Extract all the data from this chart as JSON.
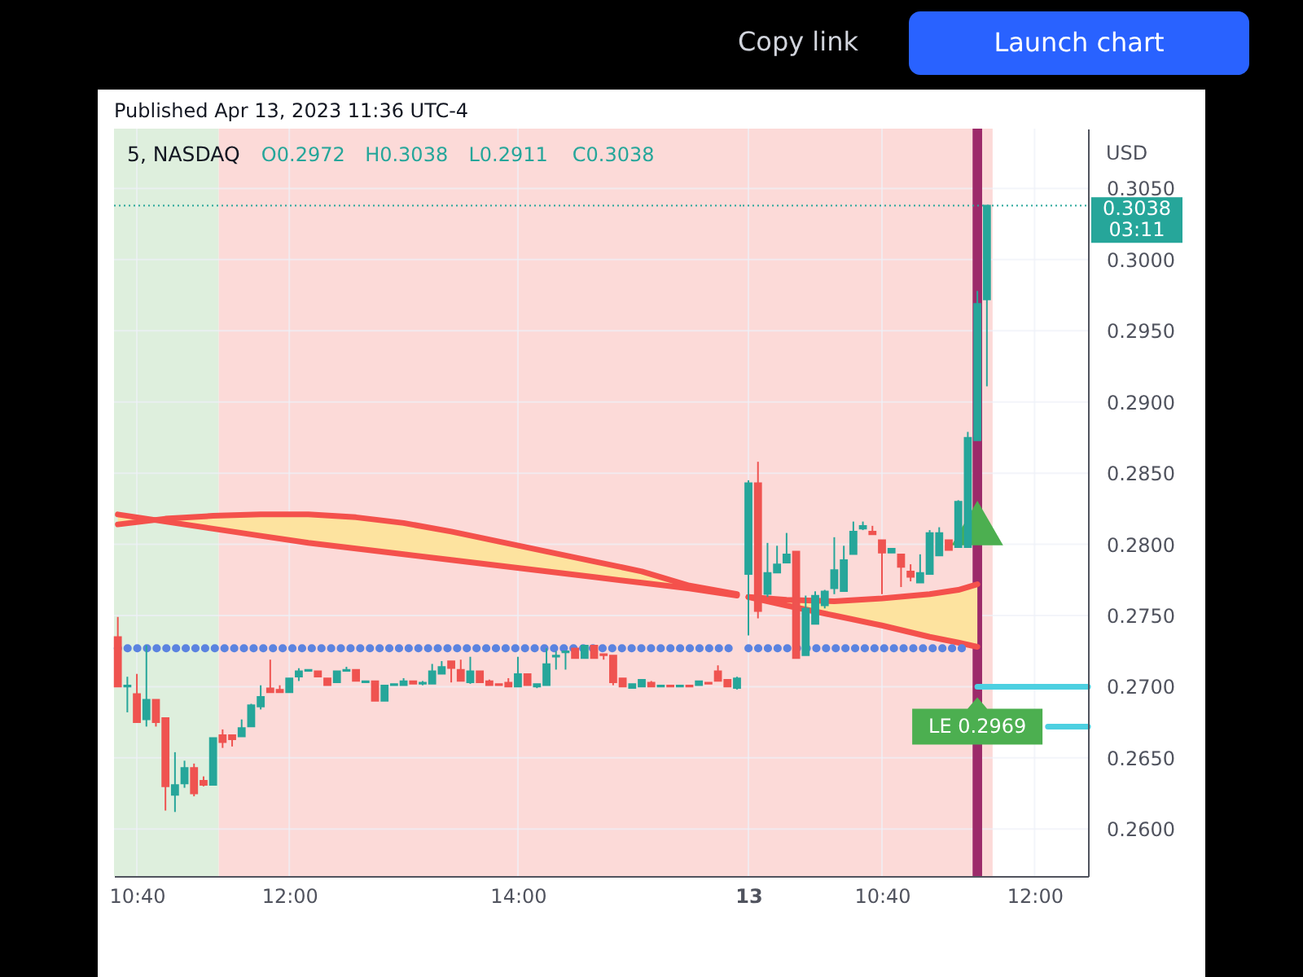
{
  "chart_data": [
    {
      "type": "candlestick",
      "title": "5, NASDAQ",
      "subtitle": "Published Apr 13, 2023 11:36 UTC-4",
      "x": [
        "2023-04-12T10:30",
        "2023-04-12T10:35",
        "2023-04-12T10:40",
        "2023-04-12T10:45",
        "2023-04-12T10:50",
        "2023-04-12T10:55",
        "2023-04-12T11:00",
        "2023-04-12T11:05",
        "2023-04-12T11:10",
        "2023-04-12T11:15",
        "2023-04-12T11:20",
        "2023-04-12T11:25",
        "2023-04-12T11:30",
        "2023-04-12T11:35",
        "2023-04-12T11:40",
        "2023-04-12T11:45",
        "2023-04-12T11:50",
        "2023-04-12T11:55",
        "2023-04-12T12:00",
        "2023-04-12T12:05",
        "2023-04-12T12:10",
        "2023-04-12T12:15",
        "2023-04-12T12:20",
        "2023-04-12T12:25",
        "2023-04-12T12:30",
        "2023-04-12T12:35",
        "2023-04-12T12:40",
        "2023-04-12T12:45",
        "2023-04-12T12:50",
        "2023-04-12T12:55",
        "2023-04-12T13:00",
        "2023-04-12T13:05",
        "2023-04-12T13:10",
        "2023-04-12T13:15",
        "2023-04-12T13:20",
        "2023-04-12T13:25",
        "2023-04-12T13:30",
        "2023-04-12T13:35",
        "2023-04-12T13:40",
        "2023-04-12T13:45",
        "2023-04-12T13:50",
        "2023-04-12T13:55",
        "2023-04-12T14:00",
        "2023-04-12T14:05",
        "2023-04-12T14:10",
        "2023-04-12T14:15",
        "2023-04-12T14:20",
        "2023-04-12T14:25",
        "2023-04-12T14:30",
        "2023-04-12T14:35",
        "2023-04-12T14:40",
        "2023-04-12T14:45",
        "2023-04-12T14:50",
        "2023-04-12T14:55",
        "2023-04-12T15:00",
        "2023-04-12T15:05",
        "2023-04-12T15:10",
        "2023-04-12T15:15",
        "2023-04-12T15:20",
        "2023-04-12T15:25",
        "2023-04-12T15:30",
        "2023-04-12T15:35",
        "2023-04-12T15:40",
        "2023-04-12T15:45",
        "2023-04-12T15:50",
        "2023-04-12T15:55"
      ],
      "ohlc": [
        [
          0.2735,
          0.2749,
          0.27,
          0.27
        ],
        [
          0.27,
          0.2707,
          0.2682,
          0.2701
        ],
        [
          0.2695,
          0.2709,
          0.2675,
          0.2675
        ],
        [
          0.2677,
          0.2729,
          0.2672,
          0.2691
        ],
        [
          0.2691,
          0.2691,
          0.2672,
          0.2675
        ],
        [
          0.2678,
          0.2678,
          0.2613,
          0.263
        ],
        [
          0.2624,
          0.2654,
          0.2612,
          0.2631
        ],
        [
          0.2632,
          0.2648,
          0.2629,
          0.2643
        ],
        [
          0.2643,
          0.2646,
          0.2623,
          0.2625
        ],
        [
          0.2634,
          0.2637,
          0.263,
          0.2631
        ],
        [
          0.2631,
          0.2664,
          0.2631,
          0.2664
        ],
        [
          0.2666,
          0.267,
          0.2657,
          0.2661
        ],
        [
          0.2666,
          0.2666,
          0.2658,
          0.2663
        ],
        [
          0.2665,
          0.2677,
          0.2665,
          0.2671
        ],
        [
          0.2672,
          0.2688,
          0.2672,
          0.2687
        ],
        [
          0.2686,
          0.2701,
          0.2684,
          0.2693
        ],
        [
          0.2699,
          0.2719,
          0.2696,
          0.2696
        ],
        [
          0.2698,
          0.2701,
          0.2696,
          0.2696
        ],
        [
          0.2696,
          0.2706,
          0.2696,
          0.2706
        ],
        [
          0.2707,
          0.2713,
          0.2704,
          0.2711
        ],
        [
          0.2711,
          0.2712,
          0.2711,
          0.2712
        ],
        [
          0.2711,
          0.2711,
          0.2707,
          0.2707
        ],
        [
          0.2706,
          0.2706,
          0.2701,
          0.2701
        ],
        [
          0.2703,
          0.2711,
          0.2703,
          0.2711
        ],
        [
          0.2711,
          0.2714,
          0.2711,
          0.2712
        ],
        [
          0.2712,
          0.2712,
          0.2704,
          0.2704
        ],
        [
          0.2703,
          0.2704,
          0.2703,
          0.2704
        ],
        [
          0.2704,
          0.2704,
          0.269,
          0.269
        ],
        [
          0.269,
          0.2701,
          0.269,
          0.2701
        ],
        [
          0.2701,
          0.2702,
          0.2701,
          0.2702
        ],
        [
          0.2701,
          0.2706,
          0.2701,
          0.2704
        ],
        [
          0.2704,
          0.2704,
          0.2702,
          0.2702
        ],
        [
          0.2702,
          0.2704,
          0.2701,
          0.2703
        ],
        [
          0.2702,
          0.2716,
          0.2702,
          0.2711
        ],
        [
          0.2709,
          0.2718,
          0.2709,
          0.2714
        ],
        [
          0.2718,
          0.2718,
          0.2703,
          0.2713
        ],
        [
          0.2712,
          0.2719,
          0.2704,
          0.2704
        ],
        [
          0.2703,
          0.2721,
          0.2702,
          0.2711
        ],
        [
          0.2711,
          0.2711,
          0.2703,
          0.2703
        ],
        [
          0.2704,
          0.2705,
          0.2701,
          0.2701
        ],
        [
          0.2702,
          0.2702,
          0.2701,
          0.2701
        ],
        [
          0.2703,
          0.2706,
          0.27,
          0.27
        ],
        [
          0.27,
          0.2721,
          0.27,
          0.2709
        ],
        [
          0.2709,
          0.2709,
          0.2701,
          0.2701
        ],
        [
          0.27,
          0.2702,
          0.2699,
          0.2702
        ],
        [
          0.2701,
          0.2727,
          0.2701,
          0.2716
        ],
        [
          0.2721,
          0.2725,
          0.2712,
          0.2722
        ],
        [
          0.2724,
          0.2725,
          0.2712,
          0.2725
        ],
        [
          0.2727,
          0.2727,
          0.272,
          0.272
        ],
        [
          0.272,
          0.2729,
          0.272,
          0.2729
        ],
        [
          0.2729,
          0.2729,
          0.272,
          0.272
        ],
        [
          0.2723,
          0.2723,
          0.2719,
          0.2722
        ],
        [
          0.2722,
          0.2722,
          0.2701,
          0.2703
        ],
        [
          0.2706,
          0.2706,
          0.27,
          0.27
        ],
        [
          0.2699,
          0.2702,
          0.2699,
          0.2702
        ],
        [
          0.27,
          0.2705,
          0.27,
          0.2705
        ],
        [
          0.2703,
          0.2704,
          0.27,
          0.27
        ],
        [
          0.27,
          0.2701,
          0.27,
          0.2701
        ],
        [
          0.2701,
          0.2701,
          0.27,
          0.27
        ],
        [
          0.27,
          0.2701,
          0.27,
          0.2701
        ],
        [
          0.2701,
          0.2701,
          0.27,
          0.27
        ],
        [
          0.2701,
          0.2704,
          0.2701,
          0.2704
        ],
        [
          0.2703,
          0.2703,
          0.2702,
          0.2702
        ],
        [
          0.2711,
          0.2715,
          0.2704,
          0.2704
        ],
        [
          0.2705,
          0.2705,
          0.27,
          0.27
        ],
        [
          0.2699,
          0.2707,
          0.2698,
          0.2706
        ]
      ],
      "colors": [
        "#ef5350",
        "#26a69a",
        "#ef5350",
        "#26a69a",
        "#ef5350",
        "#ef5350",
        "#26a69a",
        "#26a69a",
        "#ef5350",
        "#ef5350",
        "#26a69a",
        "#ef5350",
        "#ef5350",
        "#26a69a",
        "#26a69a",
        "#26a69a",
        "#ef5350",
        "#ef5350",
        "#26a69a",
        "#26a69a",
        "#26a69a",
        "#ef5350",
        "#ef5350",
        "#26a69a",
        "#26a69a",
        "#ef5350",
        "#26a69a",
        "#ef5350",
        "#26a69a",
        "#26a69a",
        "#26a69a",
        "#ef5350",
        "#26a69a",
        "#26a69a",
        "#26a69a",
        "#ef5350",
        "#ef5350",
        "#26a69a",
        "#ef5350",
        "#ef5350",
        "#ef5350",
        "#ef5350",
        "#26a69a",
        "#ef5350",
        "#26a69a",
        "#26a69a",
        "#26a69a",
        "#26a69a",
        "#ef5350",
        "#26a69a",
        "#ef5350",
        "#ef5350",
        "#ef5350",
        "#ef5350",
        "#26a69a",
        "#26a69a",
        "#ef5350",
        "#26a69a",
        "#ef5350",
        "#26a69a",
        "#ef5350",
        "#26a69a",
        "#ef5350",
        "#ef5350",
        "#ef5350",
        "#26a69a"
      ],
      "series": [
        {
          "type": "line",
          "color": "#f4514c",
          "x": [
            "2023-04-12T10:30",
            "2023-04-12T10:55",
            "2023-04-12T11:20",
            "2023-04-12T11:45",
            "2023-04-12T12:10",
            "2023-04-12T12:35",
            "2023-04-12T13:00",
            "2023-04-12T13:25",
            "2023-04-12T13:50",
            "2023-04-12T14:15",
            "2023-04-12T14:40",
            "2023-04-12T15:05",
            "2023-04-12T15:30",
            "2023-04-12T15:55"
          ],
          "values": [
            0.2821,
            0.2816,
            0.2811,
            0.2806,
            0.2801,
            0.2797,
            0.2793,
            0.2789,
            0.2785,
            0.2781,
            0.2777,
            0.2773,
            0.2769,
            0.2764
          ]
        },
        {
          "type": "line",
          "color": "#f4514c",
          "x": [
            "2023-04-12T10:30",
            "2023-04-12T10:55",
            "2023-04-12T11:20",
            "2023-04-12T11:45",
            "2023-04-12T12:10",
            "2023-04-12T12:35",
            "2023-04-12T13:00",
            "2023-04-12T13:25",
            "2023-04-12T13:50",
            "2023-04-12T14:15",
            "2023-04-12T14:40",
            "2023-04-12T15:05",
            "2023-04-12T15:30",
            "2023-04-12T15:55"
          ],
          "values": [
            0.2814,
            0.2818,
            0.282,
            0.2821,
            0.2821,
            0.2819,
            0.2815,
            0.2809,
            0.2802,
            0.2795,
            0.2788,
            0.2781,
            0.2771,
            0.2765
          ],
          "lower": [
            0.2821,
            0.2816,
            0.2811,
            0.2806,
            0.2801,
            0.2797,
            0.2793,
            0.2789,
            0.2785,
            0.2781,
            0.2777,
            0.2773,
            0.2769,
            0.2764
          ],
          "upper": [
            0.2814,
            0.2818,
            0.282,
            0.2821,
            0.2821,
            0.2819,
            0.2815,
            0.2809,
            0.2802,
            0.2795,
            0.2788,
            0.2781,
            0.2771,
            0.2765
          ]
        },
        {
          "type": "line",
          "color": "#5b83e0",
          "line_style": "dotted",
          "x": [
            "2023-04-12T10:30",
            "2023-04-12T15:55"
          ],
          "values": [
            0.2727,
            0.2727
          ]
        }
      ],
      "bands": [
        {
          "axis": "x",
          "from": "2023-04-12T10:28",
          "to": "2023-04-12T11:23",
          "color": "#deefdd"
        },
        {
          "axis": "x",
          "from": "2023-04-12T11:23",
          "to": "2023-04-12T15:58",
          "color": "#fcdad8"
        }
      ],
      "ref_lines": [
        {
          "axis": "y",
          "value": 0.3038,
          "color": "#26a69a",
          "line_style": "dotted"
        }
      ],
      "annotations": [
        "O0.2972",
        "H0.3038",
        "L0.2911",
        "C0.3038"
      ],
      "xlim": [
        "2023-04-12T10:28",
        "2023-04-12T15:58"
      ],
      "xticks": [
        {
          "value": "2023-04-12T10:40",
          "label": "10:40"
        },
        {
          "value": "2023-04-12T12:00",
          "label": "12:00"
        },
        {
          "value": "2023-04-12T14:00",
          "label": "14:00"
        }
      ],
      "ylim": [
        0.2567,
        0.3092
      ],
      "yticks": [
        0.26,
        0.265,
        0.27,
        0.275,
        0.28,
        0.285,
        0.29,
        0.295,
        0.3,
        0.305
      ],
      "tick_labels": "x",
      "grid": true
    },
    {
      "type": "candlestick",
      "ylabel": "USD",
      "x": [
        "2023-04-13T09:30",
        "2023-04-13T09:35",
        "2023-04-13T09:40",
        "2023-04-13T09:45",
        "2023-04-13T09:50",
        "2023-04-13T09:55",
        "2023-04-13T10:00",
        "2023-04-13T10:05",
        "2023-04-13T10:10",
        "2023-04-13T10:15",
        "2023-04-13T10:20",
        "2023-04-13T10:25",
        "2023-04-13T10:30",
        "2023-04-13T10:35",
        "2023-04-13T10:40",
        "2023-04-13T10:45",
        "2023-04-13T10:50",
        "2023-04-13T10:55",
        "2023-04-13T11:00",
        "2023-04-13T11:05",
        "2023-04-13T11:10",
        "2023-04-13T11:15",
        "2023-04-13T11:20",
        "2023-04-13T11:25",
        "2023-04-13T11:30",
        "2023-04-13T11:35"
      ],
      "ohlc": [
        [
          0.2779,
          0.2845,
          0.2736,
          0.2843
        ],
        [
          0.2843,
          0.2858,
          0.2748,
          0.2753
        ],
        [
          0.2765,
          0.2801,
          0.2763,
          0.278
        ],
        [
          0.278,
          0.2799,
          0.278,
          0.2786
        ],
        [
          0.2787,
          0.2808,
          0.2787,
          0.2793
        ],
        [
          0.2795,
          0.2795,
          0.272,
          0.272
        ],
        [
          0.2722,
          0.2764,
          0.2722,
          0.2755
        ],
        [
          0.2744,
          0.2767,
          0.2744,
          0.2764
        ],
        [
          0.2757,
          0.2768,
          0.2755,
          0.2767
        ],
        [
          0.2769,
          0.2805,
          0.2765,
          0.2782
        ],
        [
          0.2767,
          0.2799,
          0.2767,
          0.2789
        ],
        [
          0.2793,
          0.2816,
          0.2793,
          0.2809
        ],
        [
          0.2811,
          0.2816,
          0.281,
          0.2813
        ],
        [
          0.2809,
          0.2813,
          0.2807,
          0.2807
        ],
        [
          0.2803,
          0.2803,
          0.2765,
          0.2794
        ],
        [
          0.2794,
          0.2797,
          0.2794,
          0.2797
        ],
        [
          0.2793,
          0.2793,
          0.277,
          0.2784
        ],
        [
          0.2781,
          0.2786,
          0.2774,
          0.2777
        ],
        [
          0.2773,
          0.2793,
          0.2773,
          0.278
        ],
        [
          0.2779,
          0.281,
          0.2779,
          0.2808
        ],
        [
          0.2792,
          0.2812,
          0.2792,
          0.2808
        ],
        [
          0.2803,
          0.2803,
          0.2796,
          0.2796
        ],
        [
          0.2798,
          0.2831,
          0.2798,
          0.283
        ],
        [
          0.2798,
          0.2879,
          0.2798,
          0.2875
        ],
        [
          0.2873,
          0.2978,
          0.2873,
          0.2969
        ],
        [
          0.2972,
          0.3038,
          0.2911,
          0.3038
        ]
      ],
      "colors": [
        "#26a69a",
        "#ef5350",
        "#26a69a",
        "#26a69a",
        "#26a69a",
        "#ef5350",
        "#26a69a",
        "#26a69a",
        "#26a69a",
        "#26a69a",
        "#26a69a",
        "#26a69a",
        "#26a69a",
        "#ef5350",
        "#ef5350",
        "#26a69a",
        "#ef5350",
        "#ef5350",
        "#26a69a",
        "#26a69a",
        "#26a69a",
        "#ef5350",
        "#26a69a",
        "#26a69a",
        "#26a69a",
        "#26a69a"
      ],
      "series": [
        {
          "type": "line",
          "color": "#f4514c",
          "x": [
            "2023-04-13T09:30",
            "2023-04-13T09:50",
            "2023-04-13T10:15",
            "2023-04-13T10:40",
            "2023-04-13T11:05",
            "2023-04-13T11:20",
            "2023-04-13T11:30"
          ],
          "values": [
            0.2763,
            0.2761,
            0.276,
            0.2762,
            0.2765,
            0.2768,
            0.2772
          ]
        },
        {
          "type": "line",
          "color": "#f4514c",
          "x": [
            "2023-04-13T09:30",
            "2023-04-13T09:50",
            "2023-04-13T10:15",
            "2023-04-13T10:40",
            "2023-04-13T11:05",
            "2023-04-13T11:20",
            "2023-04-13T11:30"
          ],
          "values": [
            0.2763,
            0.2757,
            0.275,
            0.2743,
            0.2735,
            0.2731,
            0.2728
          ],
          "lower": [
            0.2763,
            0.2761,
            0.276,
            0.2762,
            0.2765,
            0.2768,
            0.2772
          ],
          "upper": [
            0.2763,
            0.2757,
            0.275,
            0.2743,
            0.2735,
            0.2731,
            0.2728
          ]
        },
        {
          "type": "line",
          "color": "#5b83e0",
          "line_style": "dotted",
          "x": [
            "2023-04-13T09:30",
            "2023-04-13T11:25"
          ],
          "values": [
            0.2727,
            0.2727
          ]
        },
        {
          "type": "line",
          "color": "#4dd0e1",
          "x": [
            "2023-04-13T11:30",
            "2023-04-13T12:28"
          ],
          "values": [
            0.27,
            0.27
          ]
        },
        {
          "type": "line",
          "color": "#4dd0e1",
          "x": [
            "2023-04-13T12:07",
            "2023-04-13T12:28"
          ],
          "values": [
            0.2672,
            0.2672
          ]
        },
        {
          "type": "scatter",
          "marker": "triangle",
          "color": "#4caf50",
          "x": [
            "2023-04-13T11:30"
          ],
          "values": [
            0.2815
          ]
        }
      ],
      "bands": [
        {
          "axis": "x",
          "from": "2023-04-13T09:27",
          "to": "2023-04-13T11:38",
          "color": "#fcdad8"
        }
      ],
      "ref_lines": [
        {
          "axis": "x",
          "value": "2023-04-13T11:30",
          "color": "#9c2a6a"
        },
        {
          "axis": "y",
          "value": 0.3038,
          "label": "0.3038",
          "color": "#26a69a",
          "line_style": "dotted"
        }
      ],
      "annotations": [
        "03:11",
        {
          "text": "LE 0.2969",
          "x": "2023-04-13T11:30",
          "y": 0.2672
        },
        "Copy link",
        "Launch chart"
      ],
      "xlim": [
        "2023-04-13T09:27",
        "2023-04-13T12:28"
      ],
      "xticks": [
        {
          "value": "2023-04-13T09:30",
          "label": "13"
        },
        {
          "value": "2023-04-13T10:40",
          "label": "10:40"
        },
        {
          "value": "2023-04-13T12:00",
          "label": "12:00"
        }
      ],
      "ylim": [
        0.2567,
        0.3092
      ],
      "yticks": [
        {
          "value": 0.26,
          "label": "0.2600"
        },
        {
          "value": 0.265,
          "label": "0.2650"
        },
        {
          "value": 0.27,
          "label": "0.2700"
        },
        {
          "value": 0.275,
          "label": "0.2750"
        },
        {
          "value": 0.28,
          "label": "0.2800"
        },
        {
          "value": 0.285,
          "label": "0.2850"
        },
        {
          "value": 0.29,
          "label": "0.2900"
        },
        {
          "value": 0.295,
          "label": "0.2950"
        },
        {
          "value": 0.3,
          "label": "0.3000"
        },
        {
          "value": 0.305,
          "label": "0.3050"
        }
      ],
      "grid": true
    }
  ]
}
